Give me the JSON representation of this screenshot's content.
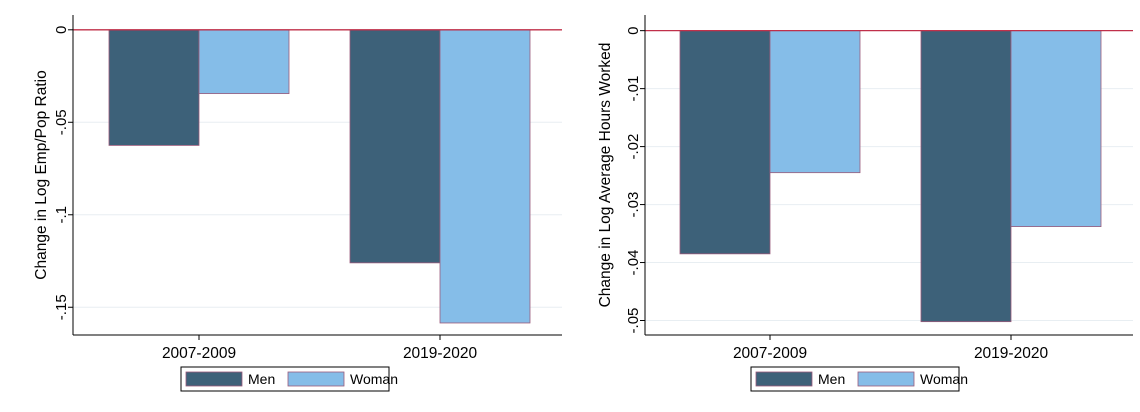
{
  "colors": {
    "men": "#3d6179",
    "woman": "#85bde8",
    "bar_outline": "#9a5a7a",
    "zero_line": "#c0304a",
    "grid": "#e8eef2",
    "axis": "#000000"
  },
  "legend": {
    "position": "bottom-center",
    "entries": [
      "Men",
      "Woman"
    ]
  },
  "chart_data": [
    {
      "type": "bar",
      "categories": [
        "2007-2009",
        "2019-2020"
      ],
      "series": [
        {
          "name": "Men",
          "values": [
            -0.0625,
            -0.126
          ]
        },
        {
          "name": "Woman",
          "values": [
            -0.0345,
            -0.1585
          ]
        }
      ],
      "title": "",
      "xlabel": "",
      "ylabel": "Change in Log Emp/Pop Ratio",
      "ylim": [
        -0.165,
        0.008
      ],
      "yticks": [
        0,
        -0.05,
        -0.1,
        -0.15
      ],
      "ytick_labels": [
        "0",
        "-.05",
        "-.1",
        "-.15"
      ],
      "grid": true
    },
    {
      "type": "bar",
      "categories": [
        "2007-2009",
        "2019-2020"
      ],
      "series": [
        {
          "name": "Men",
          "values": [
            -0.0385,
            -0.0502
          ]
        },
        {
          "name": "Woman",
          "values": [
            -0.0245,
            -0.0338
          ]
        }
      ],
      "title": "",
      "xlabel": "",
      "ylabel": "Change in Log Average Hours Worked",
      "ylim": [
        -0.0525,
        0.0027
      ],
      "yticks": [
        0,
        -0.01,
        -0.02,
        -0.03,
        -0.04,
        -0.05
      ],
      "ytick_labels": [
        "0",
        "-.01",
        "-.02",
        "-.03",
        "-.04",
        "-.05"
      ],
      "grid": true
    }
  ]
}
